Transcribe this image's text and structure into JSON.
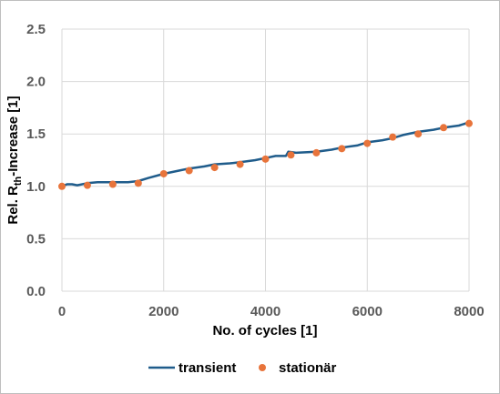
{
  "chart_data": {
    "type": "line",
    "xlabel": "No. of cycles [1]",
    "ylabel": {
      "prefix": "Rel. R",
      "subscript": "th",
      "suffix": "-Increase [1]"
    },
    "xlim": [
      0,
      8000
    ],
    "ylim": [
      0,
      2.5
    ],
    "x_ticks": [
      0,
      2000,
      4000,
      6000,
      8000
    ],
    "x_tick_labels": [
      "0",
      "2000",
      "4000",
      "6000",
      "8000"
    ],
    "y_ticks": [
      0,
      0.5,
      1,
      1.5,
      2,
      2.5
    ],
    "y_tick_labels": [
      "0.0",
      "0.5",
      "1.0",
      "1.5",
      "2.0",
      "2.5"
    ],
    "grid": true,
    "legend_position": "bottom",
    "series": [
      {
        "name": "transient",
        "kind": "line",
        "color": "#1f5c8b",
        "x": [
          0,
          100,
          200,
          300,
          500,
          700,
          1000,
          1300,
          1500,
          1700,
          2000,
          2300,
          2500,
          2800,
          3000,
          3300,
          3500,
          3800,
          4000,
          4200,
          4400,
          4450,
          4600,
          5000,
          5300,
          5500,
          5800,
          6000,
          6300,
          6500,
          6700,
          7000,
          7300,
          7500,
          7800,
          8000
        ],
        "y": [
          1.0,
          1.02,
          1.02,
          1.01,
          1.03,
          1.04,
          1.04,
          1.04,
          1.05,
          1.08,
          1.12,
          1.15,
          1.17,
          1.19,
          1.21,
          1.22,
          1.23,
          1.25,
          1.27,
          1.29,
          1.29,
          1.33,
          1.32,
          1.33,
          1.35,
          1.37,
          1.39,
          1.42,
          1.44,
          1.46,
          1.49,
          1.52,
          1.54,
          1.56,
          1.58,
          1.61
        ]
      },
      {
        "name": "stationär",
        "kind": "scatter",
        "color": "#e8743b",
        "x": [
          0,
          500,
          1000,
          1500,
          2000,
          2500,
          3000,
          3500,
          4000,
          4500,
          5000,
          5500,
          6000,
          6500,
          7000,
          7500,
          8000
        ],
        "y": [
          1.0,
          1.01,
          1.02,
          1.03,
          1.12,
          1.15,
          1.18,
          1.21,
          1.26,
          1.3,
          1.32,
          1.36,
          1.41,
          1.47,
          1.5,
          1.56,
          1.6
        ]
      }
    ]
  }
}
